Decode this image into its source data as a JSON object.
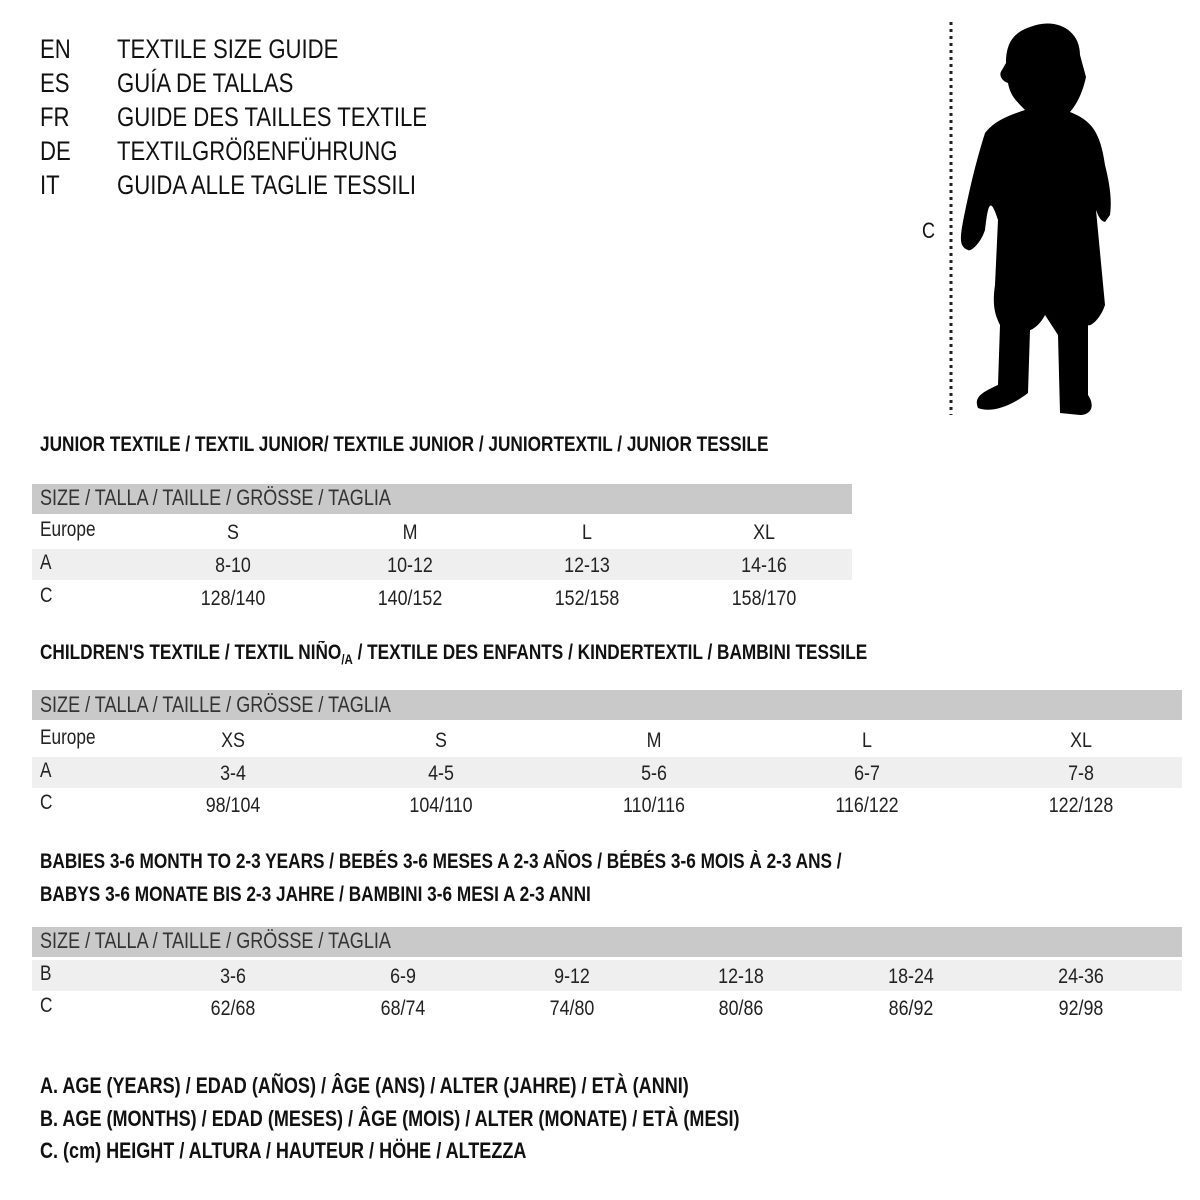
{
  "title_block": [
    {
      "code": "EN",
      "text": "TEXTILE SIZE GUIDE"
    },
    {
      "code": "ES",
      "text": "GUÍA DE TALLAS"
    },
    {
      "code": "FR",
      "text": "GUIDE DES TAILLES TEXTILE"
    },
    {
      "code": "DE",
      "text": "TEXTILGRÖßENFÜHRUNG"
    },
    {
      "code": "IT",
      "text": "GUIDA ALLE TAGLIE TESSILI"
    }
  ],
  "figure": {
    "measure_label": "C",
    "icon": "child-silhouette-icon"
  },
  "size_header": "SIZE / TALLA / TAILLE / GRÖSSE / TAGLIA",
  "junior": {
    "title": "JUNIOR TEXTILE / TEXTIL JUNIOR/ TEXTILE JUNIOR / JUNIORTEXTIL / JUNIOR TESSILE",
    "rows": [
      {
        "label": "Europe",
        "values": [
          "S",
          "M",
          "L",
          "XL"
        ]
      },
      {
        "label": "A",
        "values": [
          "8-10",
          "10-12",
          "12-13",
          "14-16"
        ]
      },
      {
        "label": "C",
        "values": [
          "128/140",
          "140/152",
          "152/158",
          "158/170"
        ]
      }
    ]
  },
  "children": {
    "title_a": "CHILDREN'S TEXTILE / TEXTIL NIÑO",
    "title_sub": "/A",
    "title_b": " / TEXTILE DES ENFANTS / KINDERTEXTIL / BAMBINI TESSILE",
    "rows": [
      {
        "label": "Europe",
        "values": [
          "XS",
          "S",
          "M",
          "L",
          "XL"
        ]
      },
      {
        "label": "A",
        "values": [
          "3-4",
          "4-5",
          "5-6",
          "6-7",
          "7-8"
        ]
      },
      {
        "label": "C",
        "values": [
          "98/104",
          "104/110",
          "110/116",
          "116/122",
          "122/128"
        ]
      }
    ]
  },
  "babies": {
    "title_line1": "BABIES 3-6 MONTH TO 2-3 YEARS / BEBÉS 3-6 MESES A 2-3 AÑOS / BÉBÉS 3-6 MOIS À 2-3 ANS /",
    "title_line2": "BABYS 3-6 MONATE BIS 2-3 JAHRE / BAMBINI 3-6 MESI A 2-3 ANNI",
    "rows": [
      {
        "label": "B",
        "values": [
          "3-6",
          "6-9",
          "9-12",
          "12-18",
          "18-24",
          "24-36"
        ]
      },
      {
        "label": "C",
        "values": [
          "62/68",
          "68/74",
          "74/80",
          "80/86",
          "86/92",
          "92/98"
        ]
      }
    ]
  },
  "legend": [
    "A. AGE (YEARS) / EDAD (AÑOS) / ÂGE (ANS) / ALTER (JAHRE) / ETÀ (ANNI)",
    "B. AGE (MONTHS) / EDAD (MESES) / ÂGE (MOIS) / ALTER (MONATE) / ETÀ (MESI)",
    "C. (cm) HEIGHT / ALTURA / HAUTEUR / HÖHE / ALTEZZA"
  ],
  "colors": {
    "header_band": "#c9c9c9",
    "alt_row": "#efefef",
    "text": "#111111"
  }
}
